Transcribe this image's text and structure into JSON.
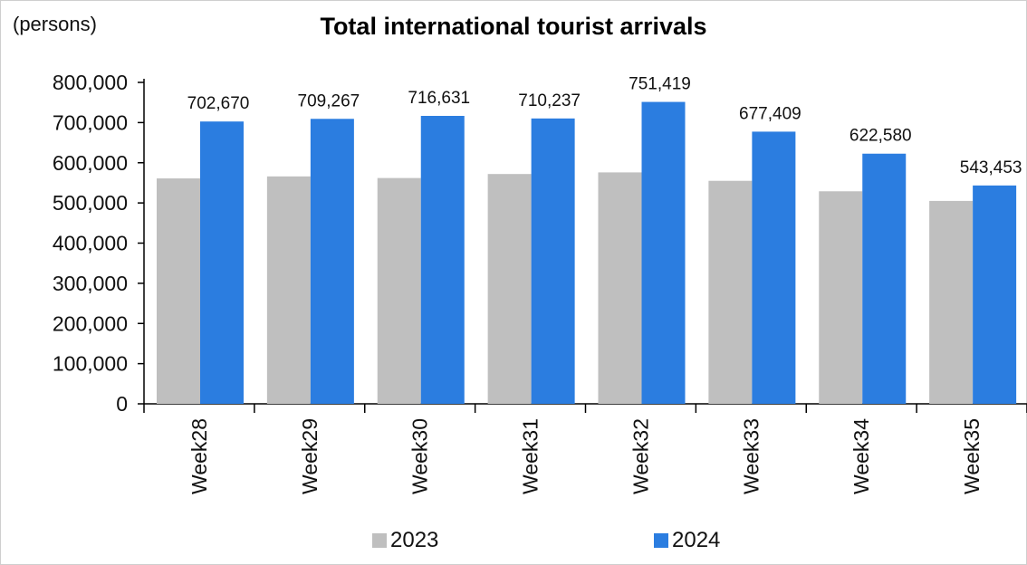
{
  "chart_data": {
    "type": "bar",
    "title": "Total international tourist arrivals",
    "ylabel": "(persons)",
    "xlabel": "",
    "categories": [
      "Week28",
      "Week29",
      "Week30",
      "Week31",
      "Week32",
      "Week33",
      "Week34",
      "Week35"
    ],
    "series": [
      {
        "name": "2023",
        "color": "#bfbfbf",
        "values": [
          561000,
          566000,
          562000,
          572000,
          576000,
          555000,
          529000,
          505000
        ],
        "labels": []
      },
      {
        "name": "2024",
        "color": "#2b7de0",
        "values": [
          702670,
          709267,
          716631,
          710237,
          751419,
          677409,
          622580,
          543453
        ],
        "labels": [
          "702,670",
          "709,267",
          "716,631",
          "710,237",
          "751,419",
          "677,409",
          "622,580",
          "543,453"
        ]
      }
    ],
    "ylim": [
      0,
      800000
    ],
    "yticks": [
      0,
      100000,
      200000,
      300000,
      400000,
      500000,
      600000,
      700000,
      800000
    ],
    "ytick_labels": [
      "0",
      "100,000",
      "200,000",
      "300,000",
      "400,000",
      "500,000",
      "600,000",
      "700,000",
      "800,000"
    ],
    "grid": false,
    "legend_position": "bottom"
  }
}
